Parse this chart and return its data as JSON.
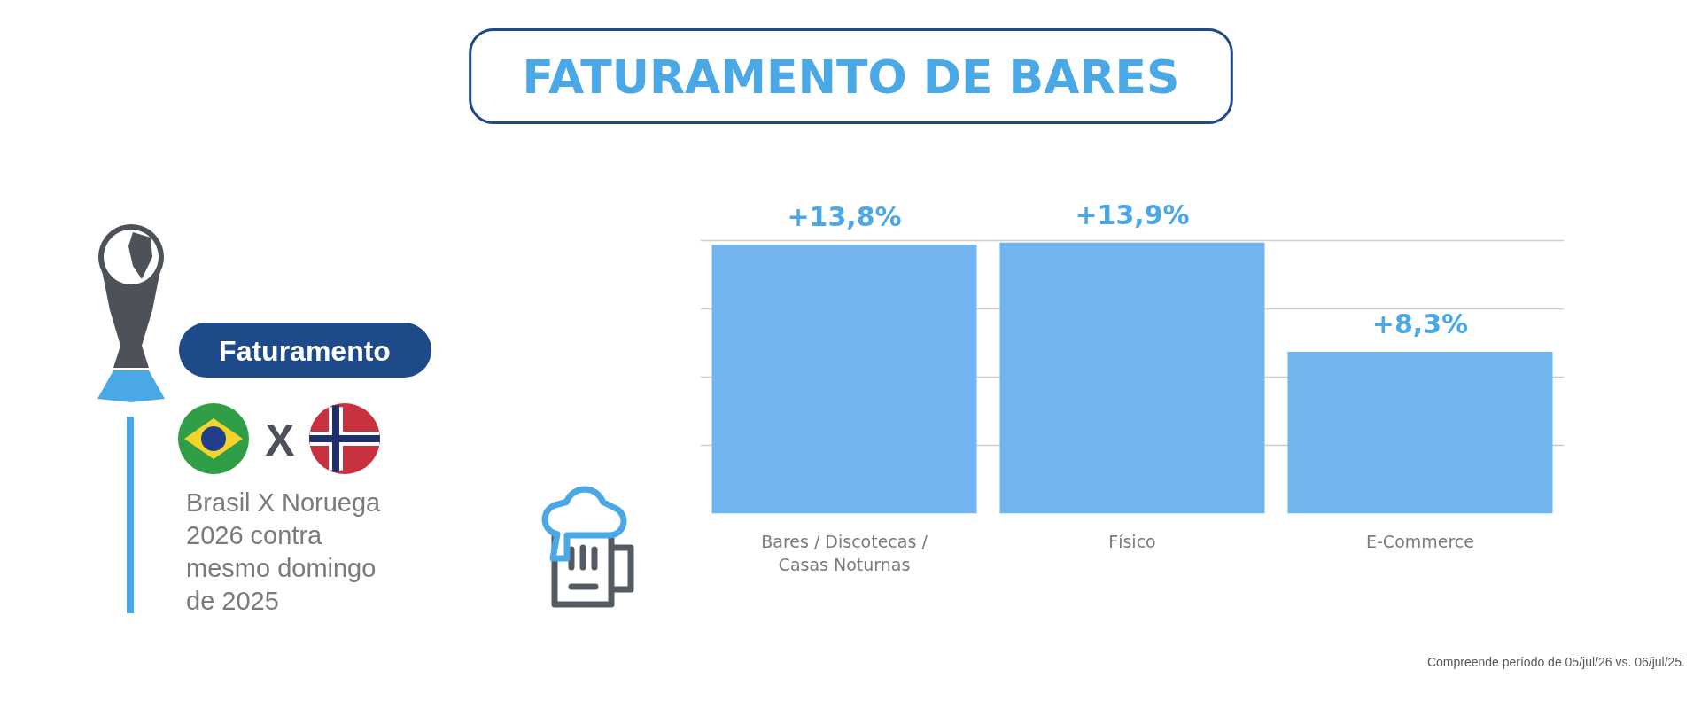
{
  "chart_data": {
    "type": "bar",
    "title": "FATURAMENTO DE BARES",
    "categories": [
      "Bares / Discotecas / Casas Noturnas",
      "Físico",
      "E-Commerce"
    ],
    "values": [
      13.8,
      13.9,
      8.3
    ],
    "color": "#72b4f0",
    "value_labels": [
      "+13,8%",
      "+13,9%",
      "+8,3%"
    ],
    "yticks": [
      {
        "value": 3.5,
        "label": null
      },
      {
        "value": 7,
        "label": null
      },
      {
        "value": 10.5,
        "label": null
      },
      {
        "value": 14,
        "label": null
      }
    ],
    "grid": "y",
    "tick_labels": "x",
    "annotations": [
      "Faturamento",
      "X",
      "Brasil X Noruega\n2026 contra\nmesmo domingo\nde 2025",
      "Compreende período de 05/jul/26 vs. 06/jul/25."
    ]
  }
}
